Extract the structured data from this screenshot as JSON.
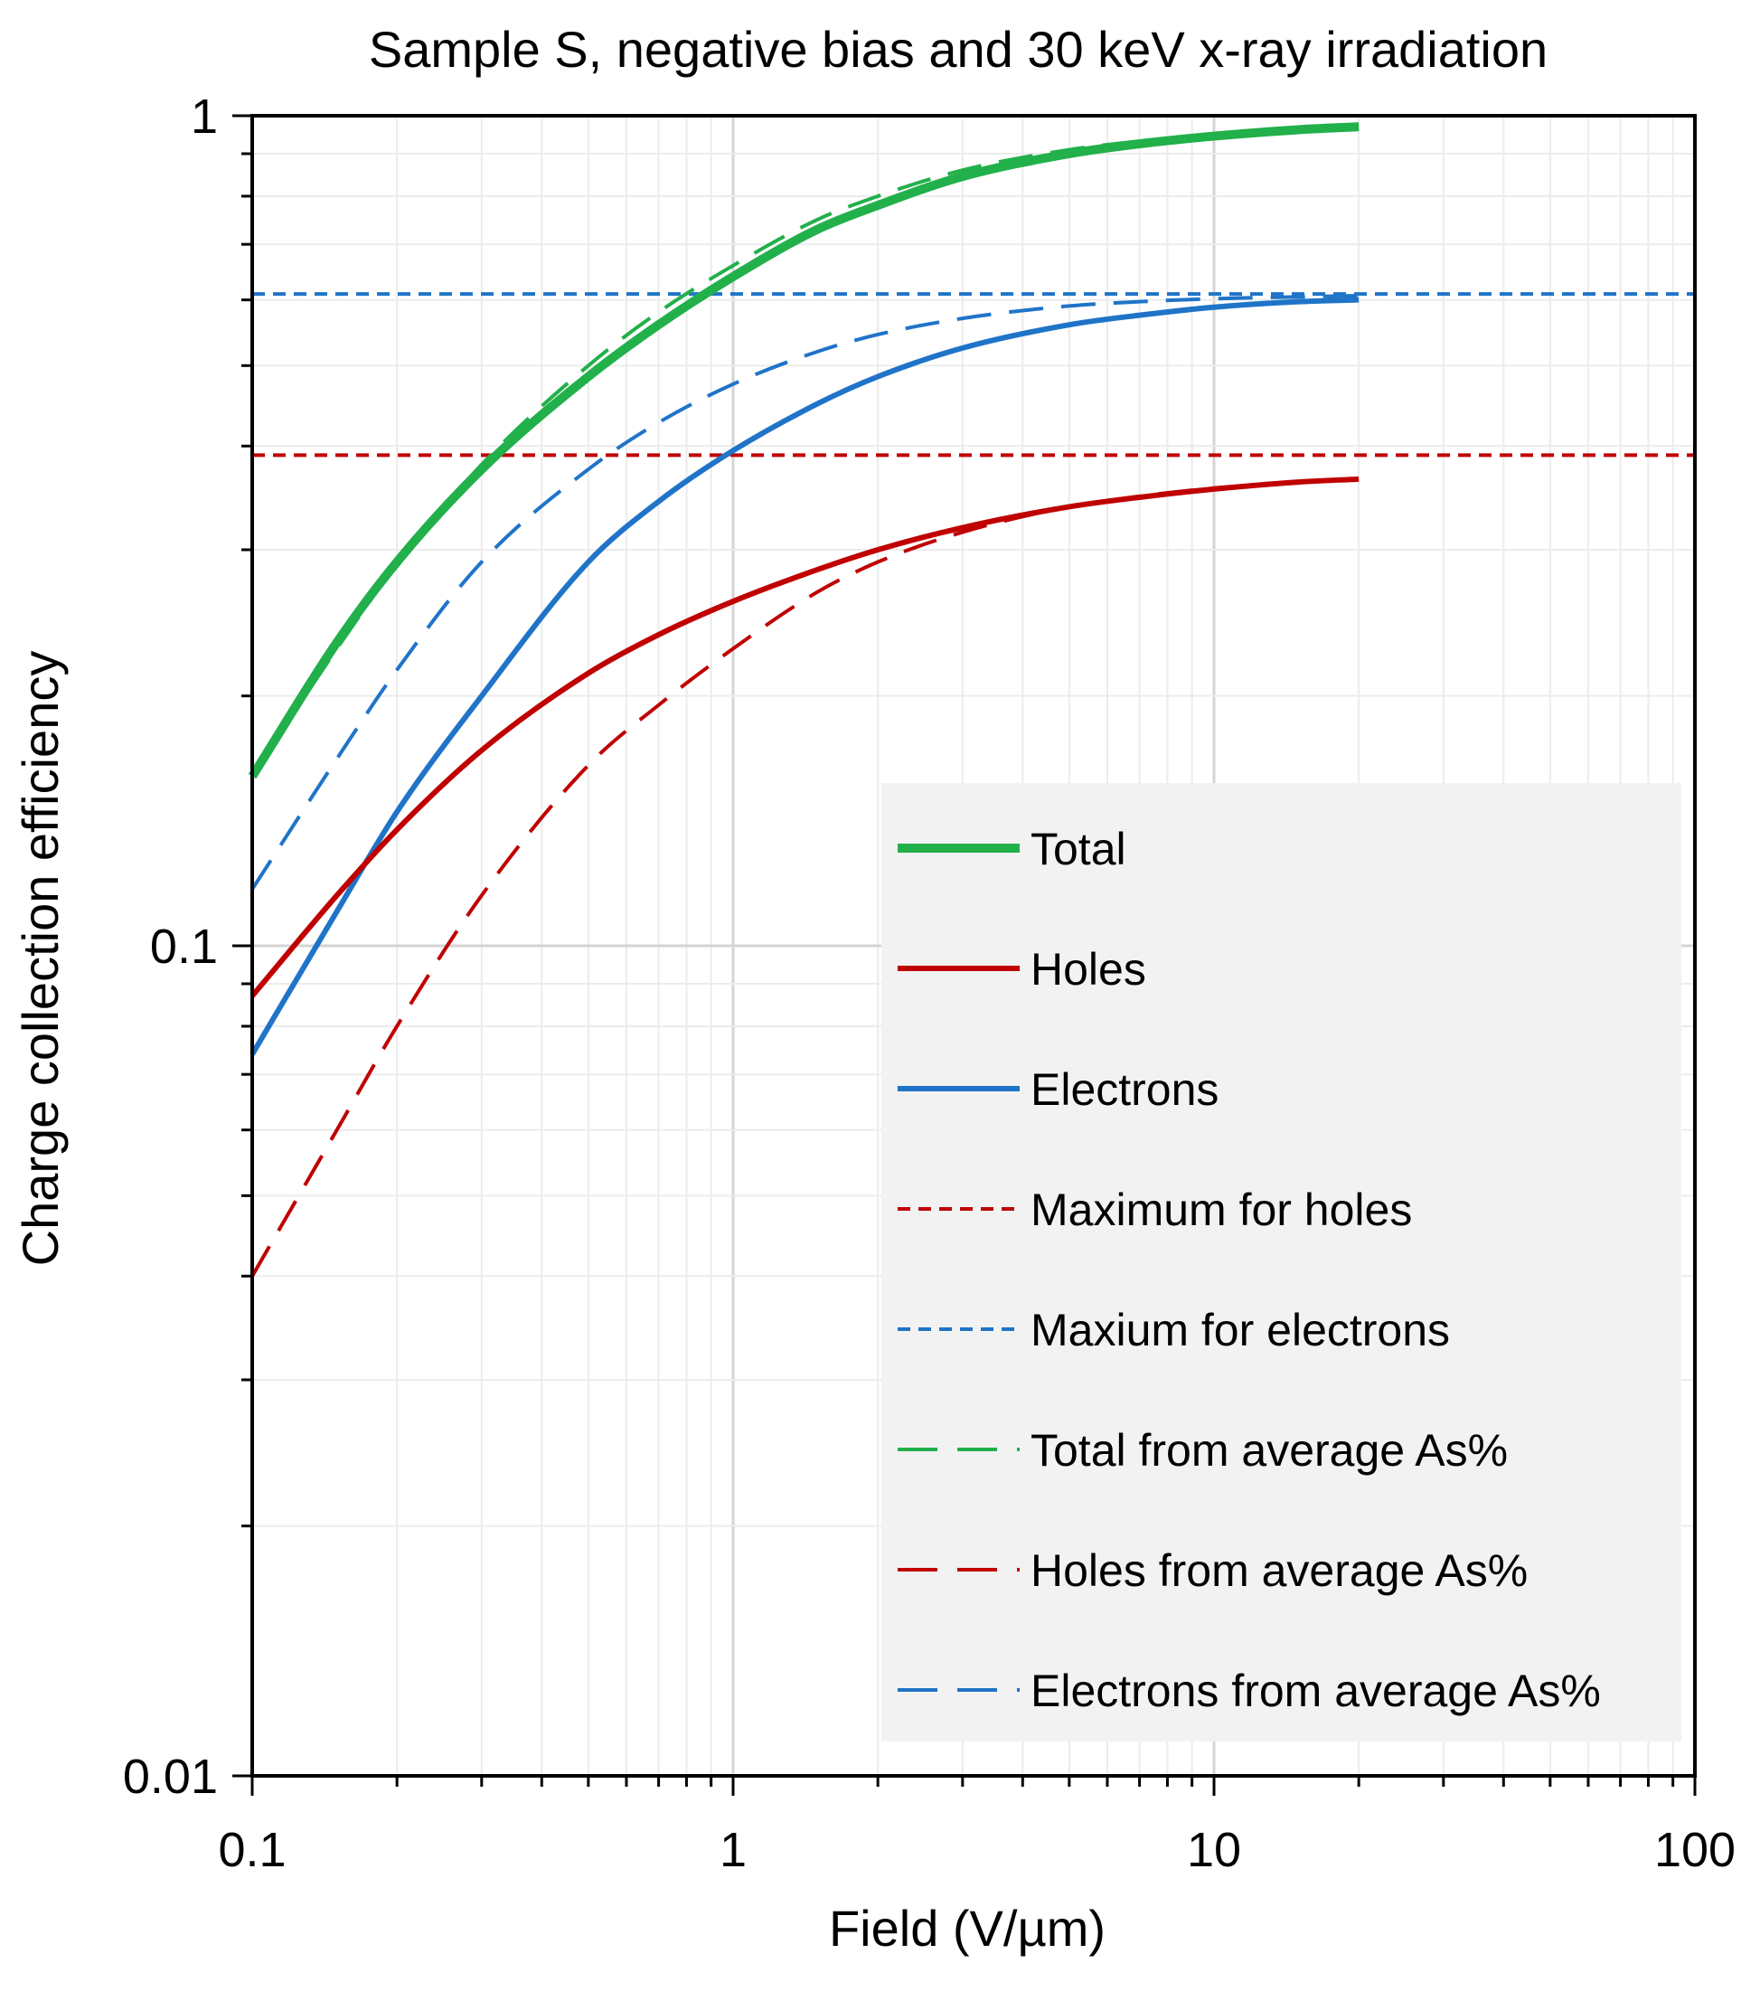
{
  "chart_data": {
    "type": "line",
    "title": "Sample S, negative bias and 30 keV x-ray irradiation",
    "xlabel": "Field (V/µm)",
    "ylabel": "Charge collection efficiency",
    "xscale": "log",
    "yscale": "log",
    "xlim": [
      0.1,
      100
    ],
    "ylim": [
      0.01,
      1
    ],
    "xticks": [
      0.1,
      1,
      10,
      100
    ],
    "xtick_labels": [
      "0.1",
      "1",
      "10",
      "100"
    ],
    "yticks": [
      0.01,
      0.1,
      1
    ],
    "ytick_labels": [
      "0.01",
      "0.1",
      "1"
    ],
    "grid": true,
    "legend_position": "bottom-right",
    "series": [
      {
        "name": "Total",
        "color": "#22b04b",
        "style": "solid-thick",
        "x": [
          0.1,
          0.15,
          0.2,
          0.3,
          0.5,
          0.7,
          1,
          1.5,
          2,
          3,
          5,
          7,
          10,
          15,
          20
        ],
        "y": [
          0.16,
          0.232,
          0.29,
          0.375,
          0.485,
          0.56,
          0.64,
          0.73,
          0.78,
          0.845,
          0.9,
          0.925,
          0.945,
          0.962,
          0.97
        ]
      },
      {
        "name": "Holes",
        "color": "#c00000",
        "style": "solid",
        "x": [
          0.1,
          0.15,
          0.2,
          0.3,
          0.5,
          0.7,
          1,
          1.5,
          2,
          3,
          5,
          7,
          10,
          15,
          20
        ],
        "y": [
          0.087,
          0.115,
          0.138,
          0.172,
          0.213,
          0.237,
          0.26,
          0.284,
          0.3,
          0.319,
          0.338,
          0.347,
          0.355,
          0.362,
          0.365
        ]
      },
      {
        "name": "Electrons",
        "color": "#1f74c8",
        "style": "solid",
        "x": [
          0.1,
          0.15,
          0.2,
          0.3,
          0.5,
          0.7,
          1,
          1.5,
          2,
          3,
          5,
          7,
          10,
          15,
          20
        ],
        "y": [
          0.074,
          0.11,
          0.145,
          0.2,
          0.29,
          0.343,
          0.395,
          0.45,
          0.485,
          0.525,
          0.56,
          0.575,
          0.588,
          0.597,
          0.6
        ]
      },
      {
        "name": "Maximum for holes",
        "color": "#c00000",
        "style": "short-dash",
        "x": [
          0.1,
          100
        ],
        "y": [
          0.39,
          0.39
        ]
      },
      {
        "name": "Maxium for electrons",
        "color": "#1f74c8",
        "style": "short-dash",
        "x": [
          0.1,
          100
        ],
        "y": [
          0.61,
          0.61
        ]
      },
      {
        "name": "Total from average As%",
        "color": "#22b04b",
        "style": "long-dash",
        "x": [
          0.1,
          0.15,
          0.2,
          0.3,
          0.5,
          0.7,
          1,
          1.5,
          2,
          3,
          5,
          7,
          10,
          15,
          20
        ],
        "y": [
          0.16,
          0.228,
          0.288,
          0.38,
          0.5,
          0.58,
          0.66,
          0.75,
          0.8,
          0.86,
          0.91,
          0.932,
          0.95,
          0.963,
          0.97
        ]
      },
      {
        "name": "Holes from average As%",
        "color": "#c00000",
        "style": "long-dash",
        "x": [
          0.1,
          0.15,
          0.2,
          0.3,
          0.5,
          0.7,
          1,
          1.5,
          2,
          3,
          5,
          7,
          10,
          15,
          20
        ],
        "y": [
          0.04,
          0.06,
          0.08,
          0.115,
          0.165,
          0.195,
          0.228,
          0.267,
          0.29,
          0.315,
          0.338,
          0.348,
          0.356,
          0.362,
          0.365
        ]
      },
      {
        "name": "Electrons from average As%",
        "color": "#1f74c8",
        "style": "long-dash",
        "x": [
          0.1,
          0.15,
          0.2,
          0.3,
          0.5,
          0.7,
          1,
          1.5,
          2,
          3,
          5,
          7,
          10,
          15,
          20
        ],
        "y": [
          0.117,
          0.168,
          0.215,
          0.29,
          0.375,
          0.427,
          0.475,
          0.52,
          0.545,
          0.57,
          0.59,
          0.597,
          0.602,
          0.605,
          0.607
        ]
      }
    ]
  }
}
